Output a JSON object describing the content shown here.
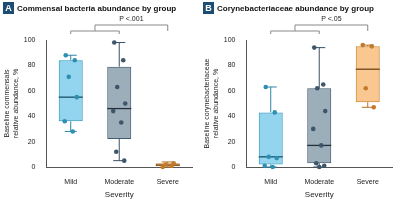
{
  "chart_data": [
    {
      "type": "box",
      "panel_label": "A",
      "title": "Commensal bacteria abundance by group",
      "x_label": "Severity",
      "y_label": "Baseline commensals relative abundance, %",
      "categories": [
        "Mild",
        "Moderate",
        "Severe"
      ],
      "colors": [
        "#3bb3e0",
        "#4d6b84",
        "#f39a35"
      ],
      "boxes": [
        {
          "min": 28,
          "q1": 36,
          "median": 55,
          "q3": 84,
          "max": 88
        },
        {
          "min": 5,
          "q1": 22,
          "median": 46,
          "q3": 79,
          "max": 98
        },
        {
          "min": 0,
          "q1": 0.5,
          "median": 1.5,
          "q3": 3,
          "max": 4
        }
      ],
      "points": [
        [
          88,
          84,
          71,
          55,
          36,
          28
        ],
        [
          98,
          84,
          63,
          50,
          44,
          35,
          12,
          5
        ],
        [
          0,
          1,
          2,
          3
        ]
      ],
      "annotations": [
        {
          "text": "P <.001"
        }
      ],
      "ylim": [
        0,
        100
      ],
      "yticks": [
        0,
        20,
        40,
        60,
        80,
        100
      ],
      "grid": false
    },
    {
      "type": "box",
      "panel_label": "B",
      "title": "Corynebacteriaceae abundance by group",
      "x_label": "Severity",
      "y_label": "Baseline corynebacteriaceae relative abundance, %",
      "categories": [
        "Mild",
        "Moderate",
        "Severe"
      ],
      "colors": [
        "#3bb3e0",
        "#4d6b84",
        "#f39a35"
      ],
      "boxes": [
        {
          "min": 0,
          "q1": 2,
          "median": 8,
          "q3": 43,
          "max": 63
        },
        {
          "min": 0,
          "q1": 3,
          "median": 17,
          "q3": 62,
          "max": 94
        },
        {
          "min": 47,
          "q1": 51,
          "median": 77,
          "q3": 95,
          "max": 96
        }
      ],
      "points": [
        [
          63,
          43,
          8,
          7,
          1,
          0
        ],
        [
          94,
          65,
          62,
          44,
          30,
          17,
          3,
          1,
          0
        ],
        [
          96,
          95,
          62,
          47
        ]
      ],
      "annotations": [
        {
          "text": "P <.05"
        }
      ],
      "ylim": [
        0,
        100
      ],
      "yticks": [
        0,
        20,
        40,
        60,
        80,
        100
      ],
      "grid": false
    }
  ]
}
